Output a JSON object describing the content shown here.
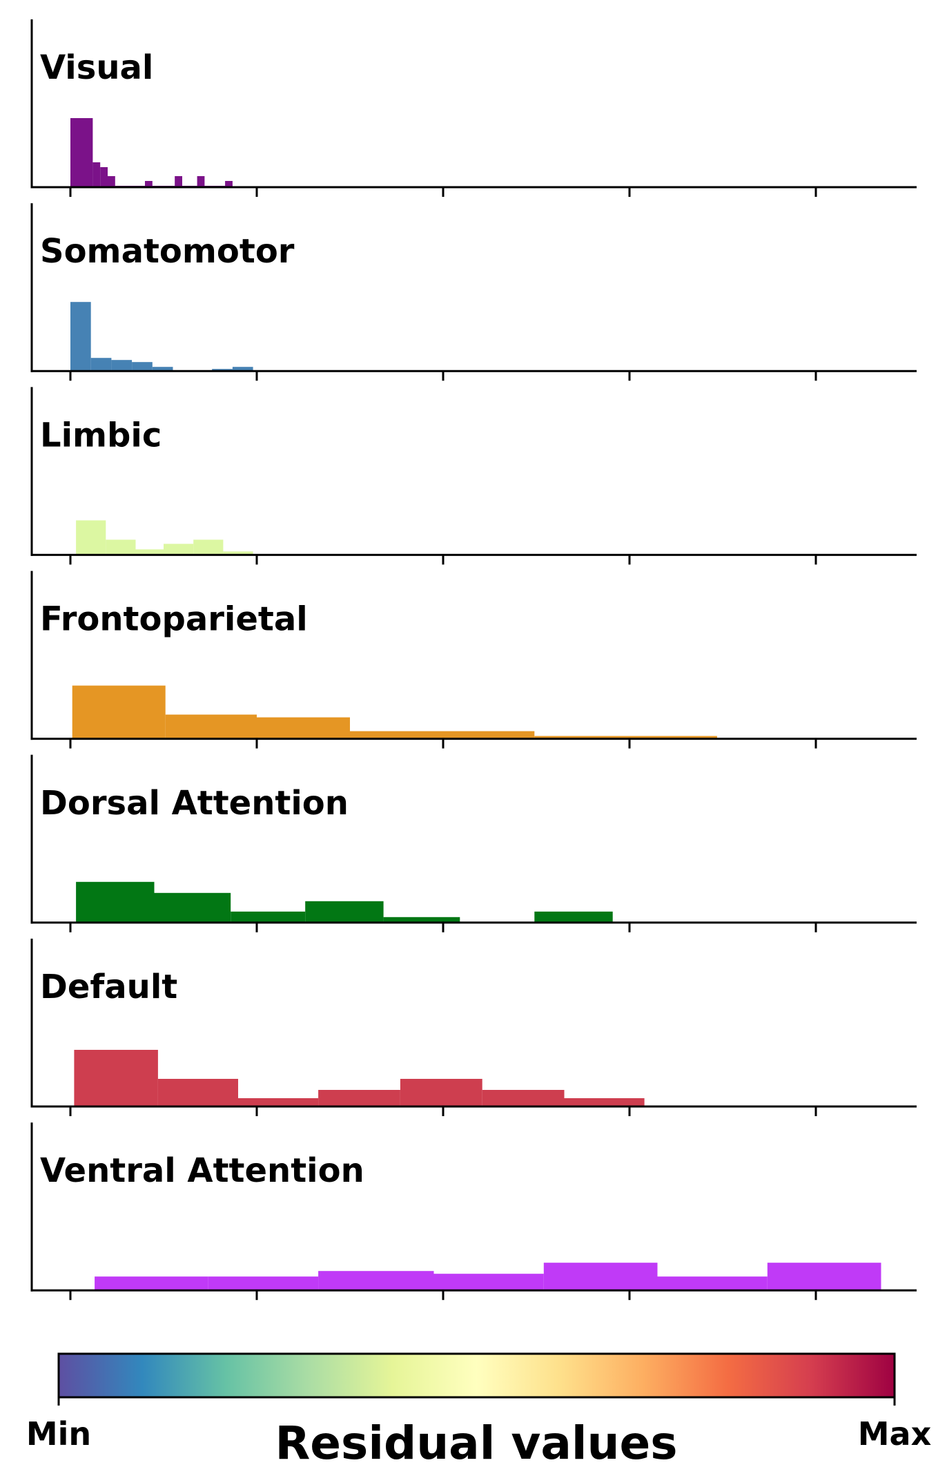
{
  "chart_data": [
    {
      "type": "bar",
      "title": "Visual",
      "color": "#7b1289",
      "bins": [
        [
          0.0,
          0.12,
          1.0
        ],
        [
          0.12,
          0.16,
          0.36
        ],
        [
          0.16,
          0.2,
          0.29
        ],
        [
          0.2,
          0.24,
          0.16
        ],
        [
          0.24,
          0.4,
          0.02
        ],
        [
          0.4,
          0.44,
          0.09
        ],
        [
          0.44,
          0.56,
          0.02
        ],
        [
          0.56,
          0.6,
          0.16
        ],
        [
          0.6,
          0.68,
          0.02
        ],
        [
          0.68,
          0.72,
          0.16
        ],
        [
          0.72,
          0.83,
          0.02
        ],
        [
          0.83,
          0.87,
          0.09
        ]
      ]
    },
    {
      "type": "bar",
      "title": "Somatomotor",
      "color": "#4682b4",
      "bins": [
        [
          0.0,
          0.11,
          1.0
        ],
        [
          0.11,
          0.22,
          0.19
        ],
        [
          0.22,
          0.33,
          0.16
        ],
        [
          0.33,
          0.44,
          0.13
        ],
        [
          0.44,
          0.55,
          0.06
        ],
        [
          0.55,
          0.76,
          0.01
        ],
        [
          0.76,
          0.87,
          0.03
        ],
        [
          0.87,
          0.98,
          0.06
        ]
      ]
    },
    {
      "type": "bar",
      "title": "Limbic",
      "color": "#dcf7a2",
      "bins": [
        [
          0.03,
          0.19,
          0.5
        ],
        [
          0.19,
          0.35,
          0.22
        ],
        [
          0.35,
          0.5,
          0.08
        ],
        [
          0.5,
          0.66,
          0.16
        ],
        [
          0.66,
          0.82,
          0.22
        ],
        [
          0.82,
          0.98,
          0.05
        ]
      ]
    },
    {
      "type": "bar",
      "title": "Frontoparietal",
      "color": "#e59624",
      "bins": [
        [
          0.01,
          0.51,
          0.77
        ],
        [
          0.51,
          1.0,
          0.35
        ],
        [
          1.0,
          1.5,
          0.31
        ],
        [
          1.5,
          2.49,
          0.11
        ],
        [
          2.49,
          3.47,
          0.04
        ]
      ]
    },
    {
      "type": "bar",
      "title": "Dorsal Attention",
      "color": "#027714",
      "bins": [
        [
          0.03,
          0.45,
          0.59
        ],
        [
          0.45,
          0.86,
          0.43
        ],
        [
          0.86,
          1.26,
          0.16
        ],
        [
          1.26,
          1.68,
          0.31
        ],
        [
          1.68,
          2.09,
          0.08
        ],
        [
          2.09,
          2.49,
          0.01
        ],
        [
          2.49,
          2.91,
          0.16
        ]
      ]
    },
    {
      "type": "bar",
      "title": "Default",
      "color": "#ce3e4f",
      "bins": [
        [
          0.02,
          0.47,
          0.82
        ],
        [
          0.47,
          0.9,
          0.4
        ],
        [
          0.9,
          1.33,
          0.12
        ],
        [
          1.33,
          1.77,
          0.24
        ],
        [
          1.77,
          2.21,
          0.4
        ],
        [
          2.21,
          2.65,
          0.24
        ],
        [
          2.65,
          3.08,
          0.12
        ]
      ]
    },
    {
      "type": "bar",
      "title": "Ventral Attention",
      "color": "#c03af7",
      "bins": [
        [
          0.13,
          0.74,
          0.2
        ],
        [
          0.74,
          1.33,
          0.2
        ],
        [
          1.33,
          1.95,
          0.28
        ],
        [
          1.95,
          2.54,
          0.24
        ],
        [
          2.54,
          3.15,
          0.4
        ],
        [
          3.15,
          3.74,
          0.2
        ],
        [
          3.74,
          4.35,
          0.4
        ]
      ]
    }
  ],
  "colorbar": {
    "min_label": "Min",
    "max_label": "Max",
    "title": "Residual values",
    "colormap": "Spectral_r",
    "colors": [
      "#5e4fa2",
      "#3288bd",
      "#66c2a5",
      "#abdda4",
      "#e6f598",
      "#ffffbf",
      "#fee08b",
      "#fdae61",
      "#f46d43",
      "#d53e4f",
      "#9e0142"
    ]
  }
}
